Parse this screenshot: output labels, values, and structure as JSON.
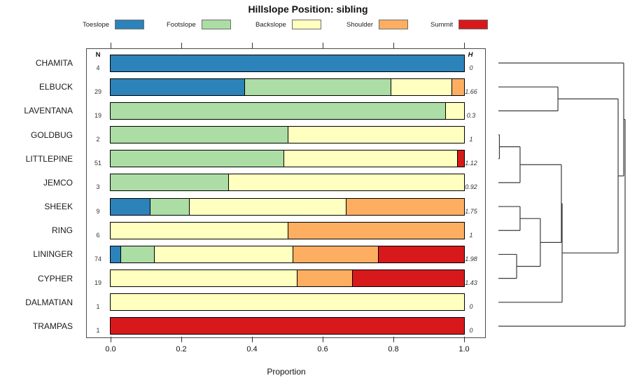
{
  "title": "Hillslope Position: sibling",
  "axis": {
    "xlabel": "Proportion",
    "tick_labels": [
      "0.0",
      "0.2",
      "0.4",
      "0.6",
      "0.8",
      "1.0"
    ]
  },
  "columns": {
    "n_header": "N",
    "h_header": "H"
  },
  "legend": [
    {
      "label": "Toeslope",
      "color": "#2B83BA"
    },
    {
      "label": "Footslope",
      "color": "#ABDDA4"
    },
    {
      "label": "Backslope",
      "color": "#FFFFBF"
    },
    {
      "label": "Shoulder",
      "color": "#FDAE61"
    },
    {
      "label": "Summit",
      "color": "#D7191C"
    }
  ],
  "chart_data": {
    "type": "bar",
    "stacked": true,
    "orientation": "horizontal",
    "title": "Hillslope Position: sibling",
    "xlabel": "Proportion",
    "xlim": [
      0,
      1
    ],
    "grid": false,
    "legend_position": "top",
    "categories": [
      "CHAMITA",
      "ELBUCK",
      "LAVENTANA",
      "GOLDBUG",
      "LITTLEPINE",
      "JEMCO",
      "SHEEK",
      "RING",
      "LININGER",
      "CYPHER",
      "DALMATIAN",
      "TRAMPAS"
    ],
    "n_values": [
      4,
      29,
      19,
      2,
      51,
      3,
      9,
      6,
      74,
      19,
      1,
      1
    ],
    "h_values": [
      "0",
      "1.66",
      "0.3",
      "1",
      "1.12",
      "0.92",
      "1.75",
      "1",
      "1.98",
      "1.43",
      "0",
      "0"
    ],
    "series": [
      {
        "name": "Toeslope",
        "color": "#2B83BA",
        "values": [
          1.0,
          0.379,
          0.0,
          0.0,
          0.0,
          0.0,
          0.111,
          0.0,
          0.027,
          0.0,
          0.0,
          0.0
        ]
      },
      {
        "name": "Footslope",
        "color": "#ABDDA4",
        "values": [
          0.0,
          0.414,
          0.947,
          0.5,
          0.49,
          0.333,
          0.111,
          0.0,
          0.095,
          0.0,
          0.0,
          0.0
        ]
      },
      {
        "name": "Backslope",
        "color": "#FFFFBF",
        "values": [
          0.0,
          0.172,
          0.053,
          0.5,
          0.49,
          0.667,
          0.444,
          0.5,
          0.392,
          0.526,
          1.0,
          0.0
        ]
      },
      {
        "name": "Shoulder",
        "color": "#FDAE61",
        "values": [
          0.0,
          0.035,
          0.0,
          0.0,
          0.0,
          0.0,
          0.334,
          0.5,
          0.243,
          0.158,
          0.0,
          0.0
        ]
      },
      {
        "name": "Summit",
        "color": "#D7191C",
        "values": [
          0.0,
          0.0,
          0.0,
          0.0,
          0.02,
          0.0,
          0.0,
          0.0,
          0.243,
          0.316,
          0.0,
          1.0
        ]
      }
    ]
  },
  "dendrogram": {
    "note": "merges reference leaves as negative 1-based category indices, prior merges as positive 1-based merge indices; h = normalized merge height 0..1",
    "merges": [
      [
        -4,
        -5,
        0.008
      ],
      [
        1,
        -6,
        0.171
      ],
      [
        -7,
        -8,
        0.171
      ],
      [
        -9,
        -10,
        0.144
      ],
      [
        3,
        4,
        0.331
      ],
      [
        2,
        5,
        0.497
      ],
      [
        6,
        -11,
        0.503
      ],
      [
        -2,
        -3,
        0.47
      ],
      [
        8,
        7,
        0.945
      ],
      [
        -1,
        9,
        0.989
      ],
      [
        10,
        -12,
        1.0
      ]
    ]
  }
}
